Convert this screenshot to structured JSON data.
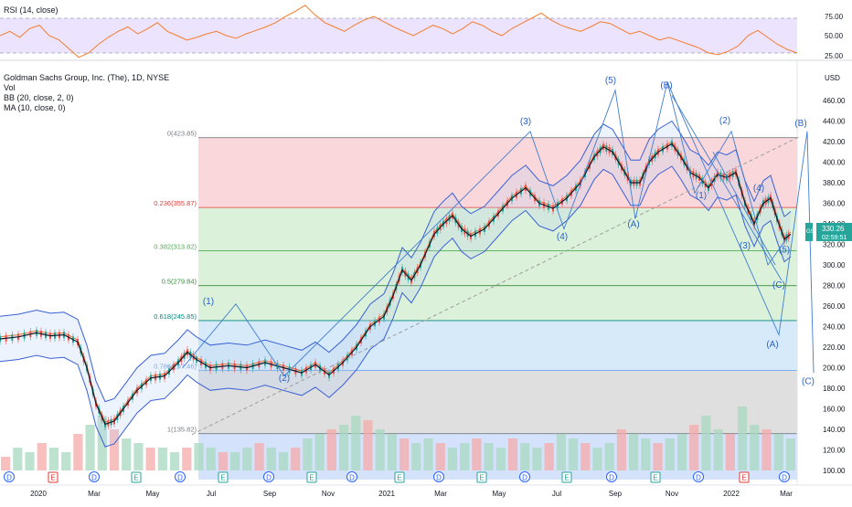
{
  "chart_data": {
    "type": "candlestick",
    "title": "Goldman Sachs Group, Inc. (The), 1D, NYSE",
    "currency": "USD",
    "indicator_labels": [
      "Vol",
      "BB (20, close, 2, 0)",
      "MA (10, close, 0)"
    ],
    "rsi_label": "RSI (14, close)",
    "rsi_ticks": [
      "75.00",
      "50.00",
      "25.00"
    ],
    "price_ticks": [
      "460.00",
      "440.00",
      "420.00",
      "400.00",
      "380.00",
      "360.00",
      "340.00",
      "320.00",
      "300.00",
      "280.00",
      "260.00",
      "240.00",
      "220.00",
      "200.00",
      "180.00",
      "160.00",
      "140.00",
      "120.00",
      "100.00"
    ],
    "x_labels": [
      "2020",
      "Mar",
      "May",
      "Jul",
      "Sep",
      "Nov",
      "2021",
      "Mar",
      "May",
      "Jul",
      "Sep",
      "Nov",
      "2022",
      "Mar"
    ],
    "last_price": "330.26",
    "countdown": "02:59:51",
    "ticker_badge": "GS",
    "ylim": [
      95,
      480
    ],
    "fib_levels": [
      {
        "label": "0(423.85)",
        "value": 423.85
      },
      {
        "label": "0.236(355.87)",
        "value": 355.87
      },
      {
        "label": "0.382(313.82)",
        "value": 313.82
      },
      {
        "label": "0.5(279.84)",
        "value": 279.84
      },
      {
        "label": "0.618(245.85)",
        "value": 245.85
      },
      {
        "label": "0.786(197.46)",
        "value": 197.46
      },
      {
        "label": "1(135.82)",
        "value": 135.82
      }
    ],
    "price_path": [
      {
        "t": 0,
        "p": 228
      },
      {
        "t": 20,
        "p": 230
      },
      {
        "t": 40,
        "p": 234
      },
      {
        "t": 55,
        "p": 231
      },
      {
        "t": 70,
        "p": 232
      },
      {
        "t": 85,
        "p": 225
      },
      {
        "t": 95,
        "p": 200
      },
      {
        "t": 105,
        "p": 165
      },
      {
        "t": 115,
        "p": 145
      },
      {
        "t": 125,
        "p": 148
      },
      {
        "t": 135,
        "p": 160
      },
      {
        "t": 150,
        "p": 178
      },
      {
        "t": 165,
        "p": 190
      },
      {
        "t": 180,
        "p": 192
      },
      {
        "t": 195,
        "p": 205
      },
      {
        "t": 205,
        "p": 215
      },
      {
        "t": 215,
        "p": 208
      },
      {
        "t": 230,
        "p": 200
      },
      {
        "t": 250,
        "p": 202
      },
      {
        "t": 270,
        "p": 200
      },
      {
        "t": 290,
        "p": 205
      },
      {
        "t": 310,
        "p": 200
      },
      {
        "t": 330,
        "p": 195
      },
      {
        "t": 345,
        "p": 203
      },
      {
        "t": 360,
        "p": 193
      },
      {
        "t": 375,
        "p": 205
      },
      {
        "t": 390,
        "p": 220
      },
      {
        "t": 405,
        "p": 240
      },
      {
        "t": 420,
        "p": 250
      },
      {
        "t": 430,
        "p": 270
      },
      {
        "t": 440,
        "p": 295
      },
      {
        "t": 450,
        "p": 285
      },
      {
        "t": 460,
        "p": 300
      },
      {
        "t": 475,
        "p": 330
      },
      {
        "t": 485,
        "p": 340
      },
      {
        "t": 495,
        "p": 348
      },
      {
        "t": 505,
        "p": 335
      },
      {
        "t": 515,
        "p": 328
      },
      {
        "t": 530,
        "p": 335
      },
      {
        "t": 545,
        "p": 350
      },
      {
        "t": 560,
        "p": 365
      },
      {
        "t": 575,
        "p": 375
      },
      {
        "t": 590,
        "p": 360
      },
      {
        "t": 605,
        "p": 355
      },
      {
        "t": 620,
        "p": 365
      },
      {
        "t": 635,
        "p": 380
      },
      {
        "t": 650,
        "p": 405
      },
      {
        "t": 660,
        "p": 415
      },
      {
        "t": 670,
        "p": 410
      },
      {
        "t": 680,
        "p": 395
      },
      {
        "t": 690,
        "p": 380
      },
      {
        "t": 700,
        "p": 380
      },
      {
        "t": 710,
        "p": 400
      },
      {
        "t": 720,
        "p": 410
      },
      {
        "t": 735,
        "p": 418
      },
      {
        "t": 745,
        "p": 405
      },
      {
        "t": 755,
        "p": 390
      },
      {
        "t": 765,
        "p": 385
      },
      {
        "t": 775,
        "p": 375
      },
      {
        "t": 785,
        "p": 388
      },
      {
        "t": 795,
        "p": 385
      },
      {
        "t": 805,
        "p": 390
      },
      {
        "t": 815,
        "p": 360
      },
      {
        "t": 825,
        "p": 340
      },
      {
        "t": 835,
        "p": 360
      },
      {
        "t": 843,
        "p": 365
      },
      {
        "t": 850,
        "p": 345
      },
      {
        "t": 858,
        "p": 325
      },
      {
        "t": 865,
        "p": 330
      }
    ],
    "elliott_labels": [
      {
        "text": "(1)",
        "t": 228,
        "p": 262
      },
      {
        "text": "(2)",
        "t": 311,
        "p": 187
      },
      {
        "text": "(3)",
        "t": 575,
        "p": 437
      },
      {
        "text": "(4)",
        "t": 615,
        "p": 325
      },
      {
        "text": "(5)",
        "t": 668,
        "p": 477
      },
      {
        "text": "(A)",
        "t": 693,
        "p": 337
      },
      {
        "text": "(B)",
        "t": 729,
        "p": 472
      },
      {
        "text": "(1)",
        "t": 767,
        "p": 365
      },
      {
        "text": "(2)",
        "t": 793,
        "p": 438
      },
      {
        "text": "(3)",
        "t": 815,
        "p": 316
      },
      {
        "text": "(4)",
        "t": 830,
        "p": 372
      },
      {
        "text": "(5)",
        "t": 858,
        "p": 312
      },
      {
        "text": "(C)",
        "t": 852,
        "p": 278
      },
      {
        "text": "(A)",
        "t": 845,
        "p": 220
      },
      {
        "text": "(B)",
        "t": 876,
        "p": 435
      },
      {
        "text": "(C)",
        "t": 884,
        "p": 184
      }
    ],
    "wave_lines": [
      [
        {
          "t": 200,
          "p": 200
        },
        {
          "t": 258,
          "p": 262
        },
        {
          "t": 311,
          "p": 192
        },
        {
          "t": 580,
          "p": 430
        },
        {
          "t": 617,
          "p": 335
        },
        {
          "t": 673,
          "p": 470
        },
        {
          "t": 695,
          "p": 345
        },
        {
          "t": 730,
          "p": 478
        },
        {
          "t": 760,
          "p": 370
        },
        {
          "t": 800,
          "p": 430
        },
        {
          "t": 840,
          "p": 300
        },
        {
          "t": 860,
          "p": 325
        }
      ],
      [
        {
          "t": 730,
          "p": 478
        },
        {
          "t": 852,
          "p": 232
        },
        {
          "t": 883,
          "p": 430
        },
        {
          "t": 890,
          "p": 195
        }
      ],
      [
        {
          "t": 735,
          "p": 465
        },
        {
          "t": 855,
          "p": 285
        }
      ],
      [
        {
          "t": 780,
          "p": 410
        },
        {
          "t": 848,
          "p": 300
        }
      ]
    ],
    "trendline": [
      {
        "t": 210,
        "p": 135
      },
      {
        "t": 875,
        "p": 425
      }
    ],
    "rsi_values": [
      50,
      55,
      48,
      58,
      62,
      50,
      45,
      35,
      25,
      30,
      40,
      48,
      55,
      60,
      52,
      58,
      65,
      55,
      50,
      45,
      48,
      52,
      55,
      50,
      47,
      52,
      56,
      60,
      65,
      72,
      78,
      85,
      74,
      65,
      60,
      55,
      62,
      68,
      72,
      66,
      60,
      55,
      50,
      56,
      62,
      58,
      52,
      58,
      66,
      62,
      55,
      50,
      58,
      64,
      70,
      76,
      68,
      62,
      58,
      55,
      60,
      66,
      64,
      58,
      52,
      55,
      50,
      45,
      48,
      44,
      40,
      36,
      30,
      28,
      32,
      38,
      50,
      56,
      48,
      40,
      34,
      30
    ],
    "event_markers": [
      {
        "t": 10,
        "k": "D"
      },
      {
        "t": 58,
        "k": "E"
      },
      {
        "t": 103,
        "k": "D"
      },
      {
        "t": 149,
        "k": "E"
      },
      {
        "t": 197,
        "k": "D"
      },
      {
        "t": 244,
        "k": "E"
      },
      {
        "t": 294,
        "k": "D"
      },
      {
        "t": 341,
        "k": "E"
      },
      {
        "t": 385,
        "k": "D"
      },
      {
        "t": 437,
        "k": "E"
      },
      {
        "t": 480,
        "k": "D"
      },
      {
        "t": 527,
        "k": "E"
      },
      {
        "t": 574,
        "k": "D"
      },
      {
        "t": 620,
        "k": "E"
      },
      {
        "t": 669,
        "k": "D"
      },
      {
        "t": 717,
        "k": "E"
      },
      {
        "t": 764,
        "k": "D"
      },
      {
        "t": 814,
        "k": "E"
      },
      {
        "t": 858,
        "k": "D"
      }
    ],
    "volume": [
      3,
      5,
      4,
      6,
      5,
      4,
      8,
      10,
      12,
      9,
      7,
      6,
      5,
      5,
      4,
      5,
      6,
      5,
      4,
      4,
      5,
      6,
      5,
      4,
      5,
      7,
      8,
      9,
      10,
      12,
      11,
      9,
      8,
      7,
      6,
      7,
      6,
      5,
      6,
      7,
      6,
      5,
      7,
      6,
      5,
      6,
      8,
      7,
      6,
      5,
      6,
      9,
      8,
      7,
      6,
      7,
      8,
      10,
      12,
      9,
      8,
      14,
      10,
      9,
      8,
      7
    ]
  }
}
